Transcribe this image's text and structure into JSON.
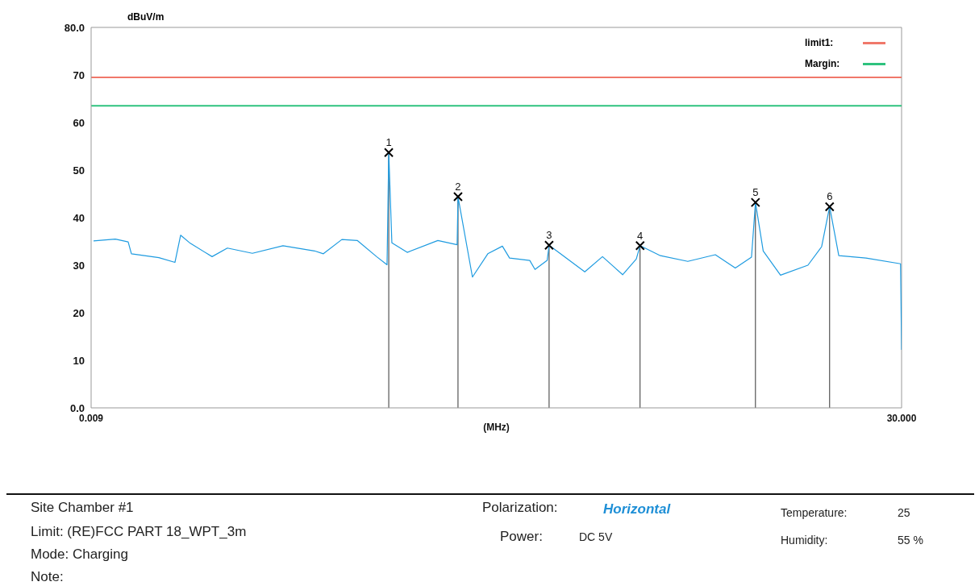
{
  "chart_data": {
    "type": "line",
    "ylabel": "dBuV/m",
    "xlabel": "(MHz)",
    "log": "x",
    "xlim": [
      0.009,
      30
    ],
    "xticks": [
      {
        "value": 0.009,
        "label": "0.009"
      },
      {
        "value": 30,
        "label": "30.000"
      }
    ],
    "ylim": [
      0,
      80
    ],
    "yticks": [
      {
        "value": 0,
        "label": "0.0"
      },
      10,
      20,
      30,
      40,
      50,
      60,
      70,
      {
        "value": 80,
        "label": "80.0"
      }
    ],
    "grid": false,
    "legend": "top right",
    "line_style": "solid",
    "series": [
      {
        "name": "limit1:",
        "color": "#f0786a",
        "x": [
          0.009,
          30
        ],
        "values": [
          69.5,
          69.5
        ]
      },
      {
        "name": "Margin:",
        "color": "#2ec27e",
        "x": [
          0.009,
          30
        ],
        "values": [
          63.5,
          63.5
        ]
      },
      {
        "color": "#1e9be0",
        "x": [
          0.00922,
          0.01147,
          0.01304,
          0.01347,
          0.01773,
          0.02083,
          0.02204,
          0.02428,
          0.0302,
          0.0352,
          0.0452,
          0.0614,
          0.0842,
          0.092,
          0.1107,
          0.1291,
          0.1567,
          0.174,
          0.177,
          0.1826,
          0.2129,
          0.2893,
          0.351,
          0.354,
          0.409,
          0.477,
          0.552,
          0.593,
          0.726,
          0.765,
          0.864,
          0.881,
          1.259,
          1.503,
          1.839,
          2.108,
          2.19,
          2.684,
          3.53,
          4.65,
          5.68,
          6.68,
          6.95,
          7.51,
          8.93,
          11.75,
          13.48,
          14.6,
          16.0,
          21.0,
          29.7,
          30
        ],
        "values": [
          35.1,
          35.5,
          34.9,
          32.4,
          31.6,
          30.6,
          36.3,
          34.6,
          31.8,
          33.6,
          32.5,
          34.1,
          33,
          32.4,
          35.4,
          35.2,
          31.8,
          30.1,
          53.7,
          34.7,
          32.7,
          35.2,
          34.3,
          44.4,
          27.5,
          32.4,
          34.0,
          31.5,
          31.0,
          29.1,
          31.0,
          34.2,
          28.6,
          31.8,
          28.0,
          31.3,
          34.1,
          32.0,
          30.8,
          32.2,
          29.4,
          31.7,
          43.2,
          33,
          27.9,
          30,
          33.9,
          42.3,
          32.0,
          31.5,
          30.3,
          12.2
        ]
      },
      {
        "type": "scatter",
        "color": "#000000",
        "marker": "cross",
        "x": [
          0.177,
          0.354,
          0.881,
          2.19,
          6.95,
          14.6
        ],
        "values": [
          53.7,
          44.4,
          34.2,
          34.1,
          43.2,
          42.3
        ]
      }
    ],
    "annotations": [
      {
        "text": "1",
        "x": 0.177,
        "y": 53.7
      },
      {
        "text": "2",
        "x": 0.354,
        "y": 44.4
      },
      {
        "text": "3",
        "x": 0.881,
        "y": 34.2
      },
      {
        "text": "4",
        "x": 2.19,
        "y": 34.1
      },
      {
        "text": "5",
        "x": 6.95,
        "y": 43.2
      },
      {
        "text": "6",
        "x": 14.6,
        "y": 42.3
      },
      "Site  Chamber #1",
      "Limit: (RE)FCC PART 18_WPT_3m",
      "Mode: Charging",
      "Note:",
      "Polarization:",
      "Horizontal",
      "Power:",
      "DC 5V",
      "Temperature:",
      "25",
      "Humidity:",
      "55 %"
    ]
  }
}
